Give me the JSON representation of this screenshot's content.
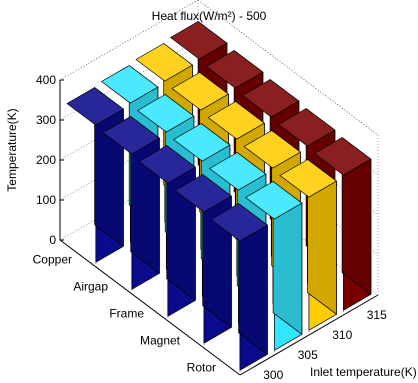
{
  "chart_data": {
    "type": "bar3d",
    "title": "Heat flux(W/m²) - 500",
    "xlabel": "Inlet temperature(K)",
    "ylabel": "",
    "zlabel": "Temperature(K)",
    "x_categories": [
      "300",
      "305",
      "310",
      "315"
    ],
    "y_categories": [
      "Copper",
      "Airgap",
      "Frame",
      "Magnet",
      "Rotor"
    ],
    "zlim": [
      0,
      400
    ],
    "zticks": [
      "0",
      "100",
      "200",
      "300",
      "400"
    ],
    "grid": true,
    "series": [
      {
        "x": "300",
        "color": "#0a0a8c",
        "values": [
          343,
          338,
          333,
          328,
          323
        ]
      },
      {
        "x": "305",
        "color": "#33e6ff",
        "values": [
          348,
          343,
          338,
          333,
          328
        ]
      },
      {
        "x": "310",
        "color": "#ffcc00",
        "values": [
          353,
          348,
          343,
          338,
          333
        ]
      },
      {
        "x": "315",
        "color": "#7a0000",
        "values": [
          358,
          353,
          348,
          343,
          338
        ]
      }
    ]
  }
}
